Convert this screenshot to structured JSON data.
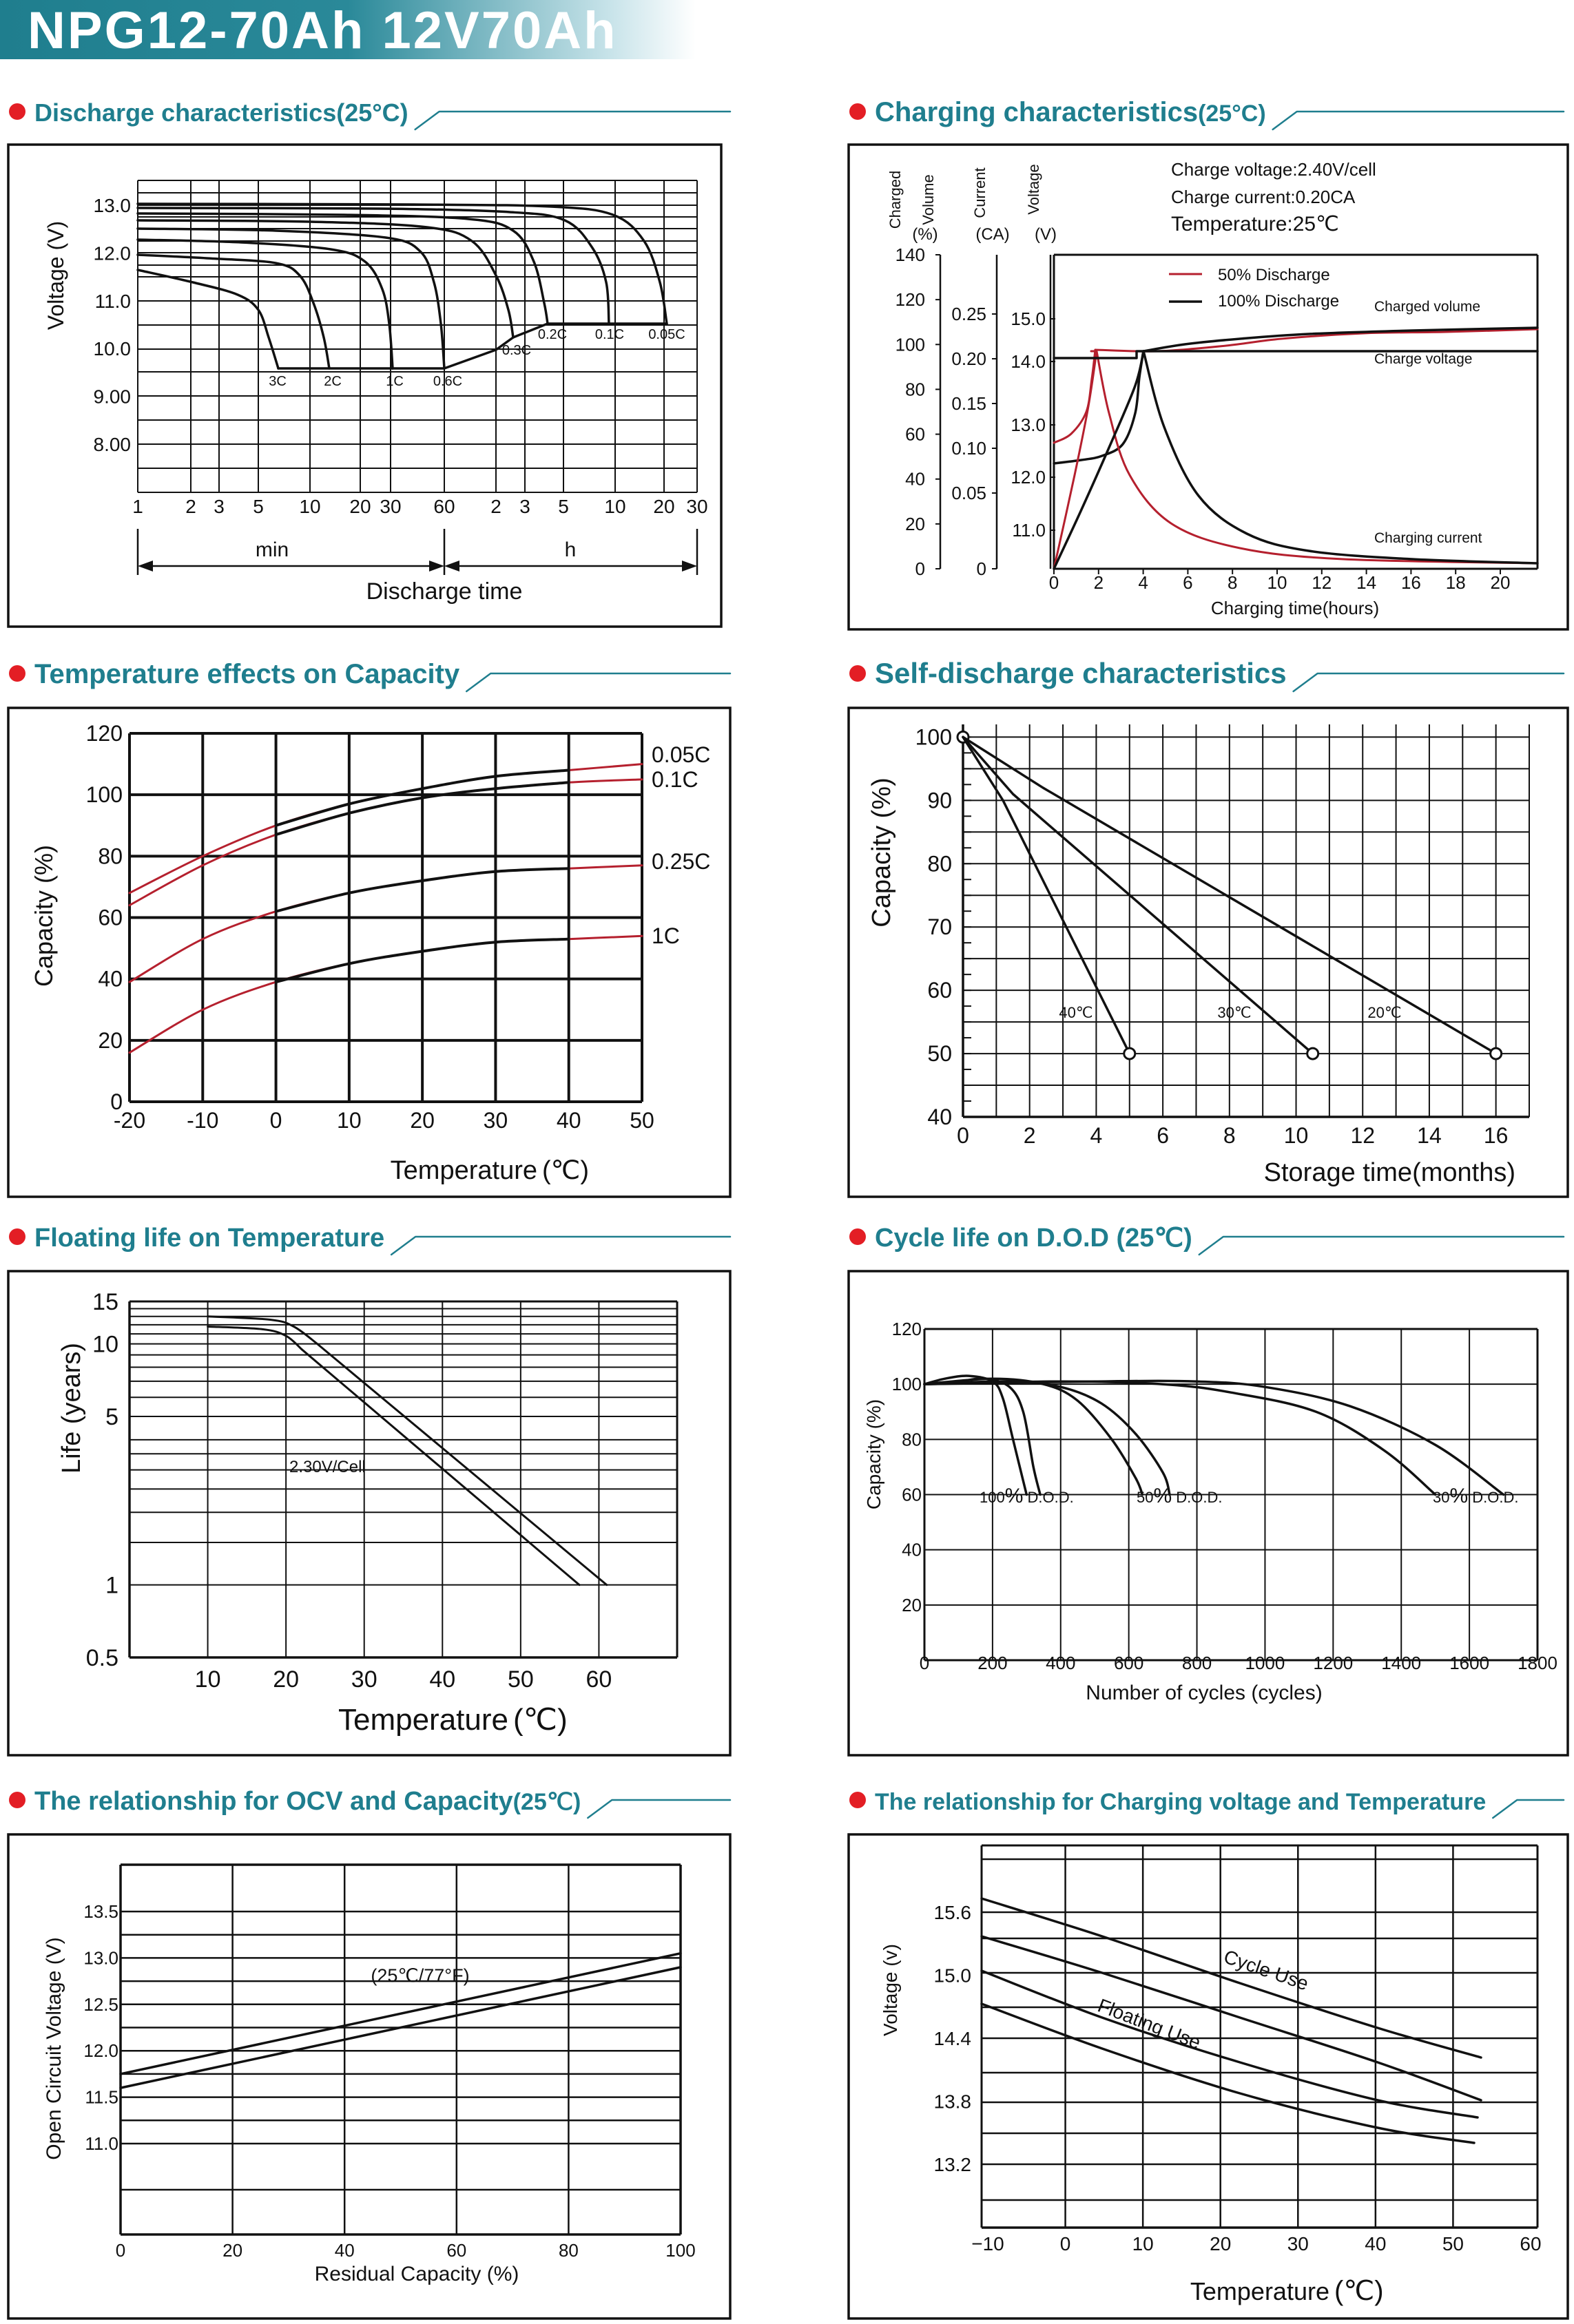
{
  "page_title": "NPG12-70Ah 12V70Ah",
  "colors": {
    "accent": "#1f7e8e",
    "bullet": "#e31e25",
    "red_curve": "#b5202e",
    "black": "#111111"
  },
  "chart_data": [
    {
      "id": "discharge",
      "type": "line",
      "title": "Discharge characteristics(25°C)",
      "xlabel": "Discharge time",
      "ylabel": "Voltage (V)",
      "y_ticks": [
        "13.0",
        "12.0",
        "11.0",
        "10.0",
        "9.00",
        "8.00"
      ],
      "x_ticks": [
        "1",
        "2",
        "3",
        "5",
        "10",
        "20",
        "30",
        "60",
        "2",
        "3",
        "5",
        "10",
        "20",
        "30"
      ],
      "unit_labels": [
        "min",
        "h"
      ],
      "series_labels": [
        "3C",
        "2C",
        "1C",
        "0.6C",
        "0.3C",
        "0.2C",
        "0.1C",
        "0.05C"
      ],
      "ylim": [
        7,
        13.5
      ]
    },
    {
      "id": "charging",
      "type": "line",
      "title": "Charging characteristics",
      "title_suffix": "(25°C)",
      "axis_titles": [
        "Charged",
        "Volume",
        "(%)",
        "Current",
        "(CA)",
        "Voltage",
        "(V)"
      ],
      "info": [
        "Charge voltage:2.40V/cell",
        "Charge current:0.20CA",
        "Temperature:25℃"
      ],
      "legend": [
        "50% Discharge",
        "100% Discharge"
      ],
      "curve_labels": [
        "Charged volume",
        "Charge voltage",
        "Charging current"
      ],
      "xlabel": "Charging time(hours)",
      "x_ticks": [
        "0",
        "2",
        "4",
        "6",
        "8",
        "10",
        "12",
        "14",
        "16",
        "18",
        "20"
      ],
      "vol_ticks": [
        "140",
        "120",
        "100",
        "80",
        "60",
        "40",
        "20",
        "0"
      ],
      "cur_ticks": [
        "0.25",
        "0.20",
        "0.15",
        "0.10",
        "0.05",
        "0"
      ],
      "volt_ticks": [
        "15.0",
        "14.0",
        "13.0",
        "12.0",
        "11.0"
      ]
    },
    {
      "id": "temperature",
      "type": "line",
      "title": "Temperature effects on Capacity",
      "xlabel": "Temperature",
      "xlabel_unit": "(℃)",
      "ylabel": "Capacity (%)",
      "x_ticks": [
        "-20",
        "-10",
        "0",
        "10",
        "20",
        "30",
        "40",
        "50"
      ],
      "y_ticks": [
        "120",
        "100",
        "80",
        "60",
        "40",
        "20",
        "0"
      ],
      "series": [
        {
          "name": "0.05C",
          "x": [
            -20,
            -10,
            0,
            10,
            20,
            30,
            40,
            50
          ],
          "values": [
            68,
            80,
            90,
            97,
            102,
            106,
            108,
            110
          ]
        },
        {
          "name": "0.1C",
          "x": [
            -20,
            -10,
            0,
            10,
            20,
            30,
            40,
            50
          ],
          "values": [
            64,
            77,
            87,
            94,
            99,
            102,
            104,
            105
          ]
        },
        {
          "name": "0.25C",
          "x": [
            -20,
            -10,
            0,
            10,
            20,
            30,
            40,
            50
          ],
          "values": [
            39,
            53,
            62,
            68,
            72,
            75,
            76,
            77
          ]
        },
        {
          "name": "1C",
          "x": [
            -20,
            -10,
            0,
            10,
            20,
            30,
            40,
            50
          ],
          "values": [
            16,
            30,
            39,
            45,
            49,
            52,
            53,
            54
          ]
        }
      ],
      "xlim": [
        -20,
        50
      ],
      "ylim": [
        0,
        120
      ]
    },
    {
      "id": "self_discharge",
      "type": "line",
      "title": "Self-discharge characteristics",
      "xlabel": "Storage time(months)",
      "ylabel": "Capacity (%)",
      "x_ticks": [
        "0",
        "2",
        "4",
        "6",
        "8",
        "10",
        "12",
        "14",
        "16"
      ],
      "y_ticks": [
        "100",
        "90",
        "80",
        "70",
        "60",
        "50",
        "40"
      ],
      "series": [
        {
          "name": "40℃",
          "x": [
            0,
            5
          ],
          "values": [
            100,
            50
          ]
        },
        {
          "name": "30℃",
          "x": [
            0,
            10.5
          ],
          "values": [
            100,
            50
          ]
        },
        {
          "name": "20℃",
          "x": [
            0,
            16
          ],
          "values": [
            100,
            50
          ]
        }
      ],
      "xlim": [
        0,
        17
      ],
      "ylim": [
        40,
        102
      ]
    },
    {
      "id": "floating_life",
      "type": "line",
      "title": "Floating life on Temperature",
      "xlabel": "Temperature",
      "xlabel_unit": "(℃)",
      "ylabel": "Life (years)",
      "x_ticks": [
        "10",
        "20",
        "30",
        "40",
        "50",
        "60"
      ],
      "y_ticks": [
        "15",
        "10",
        "5",
        "1",
        "0.5"
      ],
      "annotation": "2.30V/Cell"
    },
    {
      "id": "cycle_life",
      "type": "line",
      "title": "Cycle life on D.O.D (25",
      "title_suffix": "℃)",
      "xlabel": "Number of cycles (cycles)",
      "ylabel": "Capacity (%)",
      "x_ticks": [
        "0",
        "200",
        "400",
        "600",
        "800",
        "1000",
        "1200",
        "1400",
        "1600",
        "1800"
      ],
      "y_ticks": [
        "120",
        "100",
        "80",
        "60",
        "40",
        "20"
      ],
      "dod_labels": [
        {
          "num": "100",
          "pct": "%",
          "txt": "D.O.D."
        },
        {
          "num": "50",
          "pct": "%",
          "txt": "D.O.D."
        },
        {
          "num": "30",
          "pct": "%",
          "txt": "D.O.D."
        }
      ]
    },
    {
      "id": "ocv",
      "type": "line",
      "title": "The relationship  for OCV and Capacity",
      "title_suffix": "(25℃)",
      "xlabel": "Residual Capacity (%)",
      "ylabel": "Open Circuit Voltage (V)",
      "x_ticks": [
        "0",
        "20",
        "40",
        "60",
        "80",
        "100"
      ],
      "y_ticks": [
        "13.5",
        "13.0",
        "12.5",
        "12.0",
        "11.5",
        "11.0"
      ],
      "annotation": "(25℃/77°F)",
      "series": [
        {
          "x": [
            0,
            100
          ],
          "values": [
            11.75,
            13.05
          ]
        },
        {
          "x": [
            0,
            100
          ],
          "values": [
            11.6,
            12.9
          ]
        }
      ]
    },
    {
      "id": "charge_voltage_temp",
      "type": "line",
      "title": "The relationship for Charging voltage and Temperature",
      "xlabel": "Temperature",
      "xlabel_unit": "(℃)",
      "ylabel": "Voltage (v)",
      "x_ticks": [
        "−10",
        "0",
        "10",
        "20",
        "30",
        "40",
        "50",
        "60"
      ],
      "y_ticks": [
        "15.6",
        "15.0",
        "14.4",
        "13.8",
        "13.2"
      ],
      "band_labels": [
        "Cycle Use",
        "Floating Use"
      ]
    }
  ]
}
